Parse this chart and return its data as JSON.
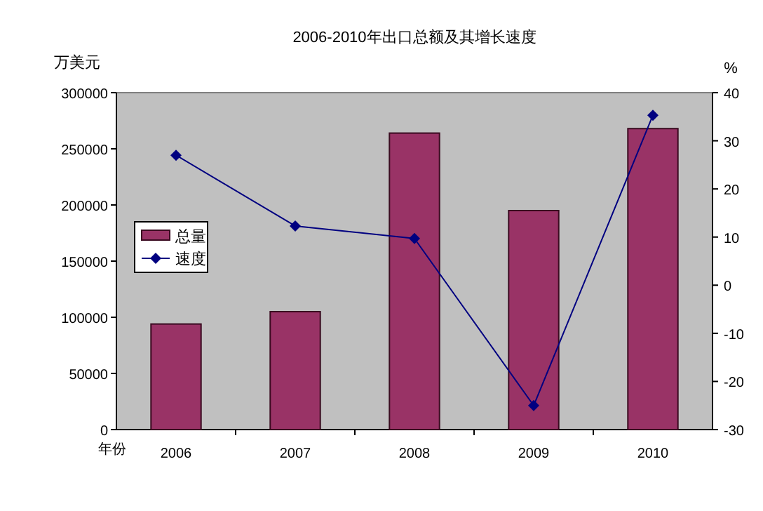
{
  "chart_data": {
    "type": "bar",
    "title": "2006-2010年出口总额及其增长速度",
    "xlabel": "年份",
    "ylabel": "万美元",
    "y2label": "%",
    "categories": [
      "2006",
      "2007",
      "2008",
      "2009",
      "2010"
    ],
    "series": [
      {
        "name": "总量",
        "color": "#993366",
        "values": [
          94000,
          105000,
          264000,
          195000,
          268000
        ]
      },
      {
        "name": "速度",
        "type": "line",
        "axis": "y2",
        "color": "#000080",
        "marker": "diamond",
        "values": [
          27,
          12.3,
          9.7,
          -25,
          35.3
        ]
      }
    ],
    "ylim": [
      0,
      300000
    ],
    "yticks": [
      0,
      50000,
      100000,
      150000,
      200000,
      250000,
      300000
    ],
    "y2lim": [
      -30,
      40
    ],
    "y2ticks": [
      -30,
      -20,
      -10,
      0,
      10,
      20,
      30,
      40
    ],
    "grid": false,
    "legend": "left"
  }
}
